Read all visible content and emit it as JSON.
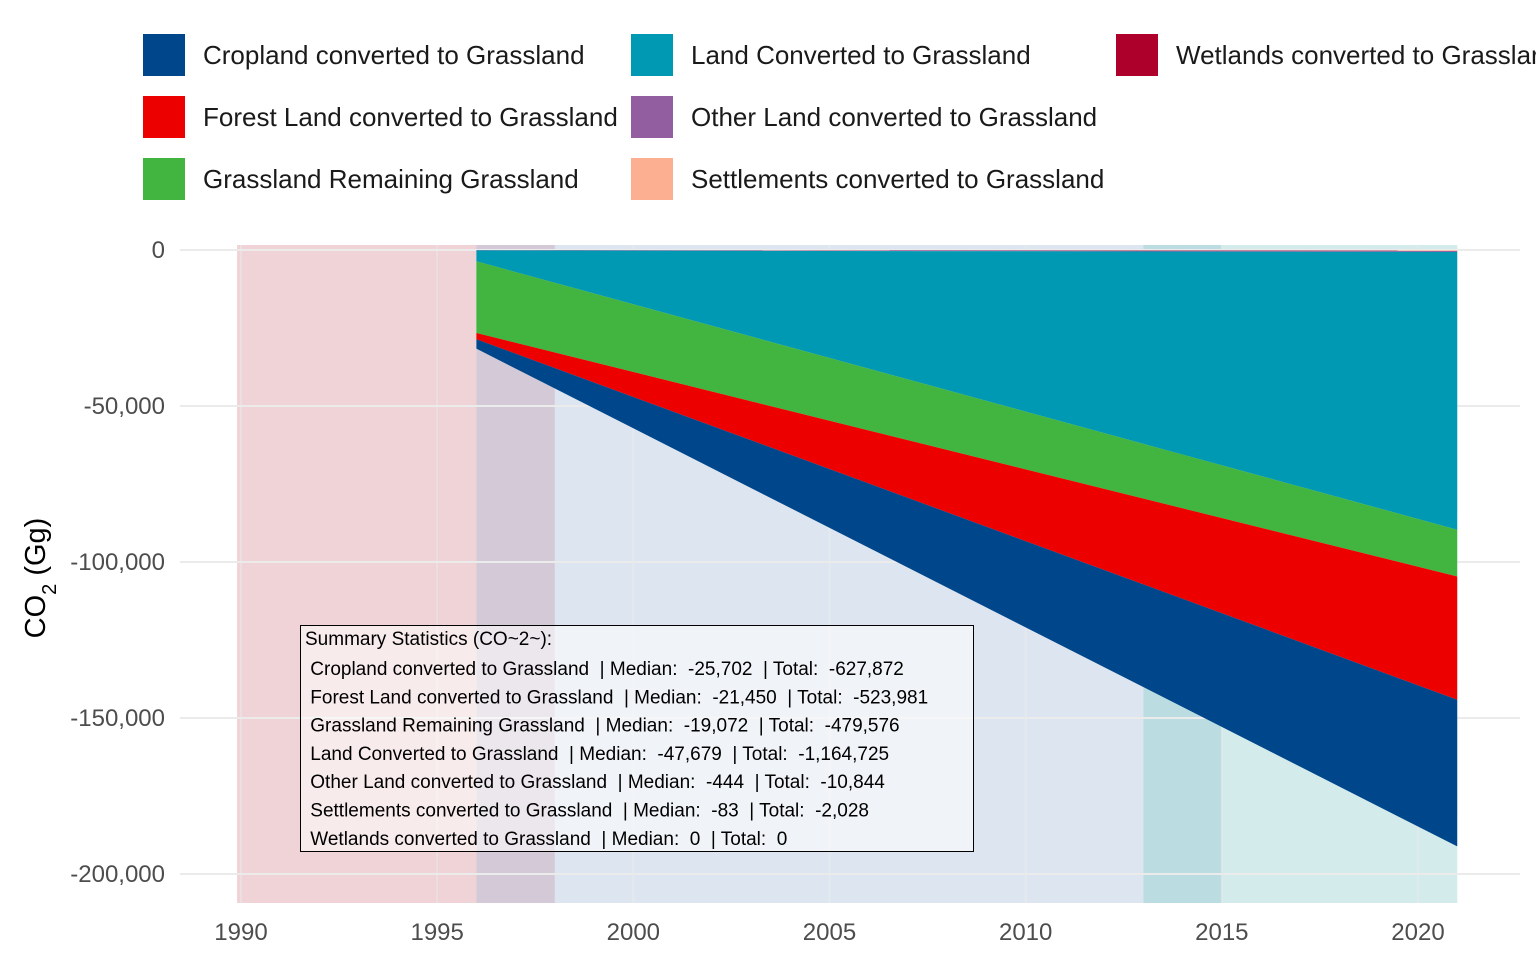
{
  "chart_data": {
    "type": "area",
    "ylabel": "CO2 (Gg)",
    "ylabel_main": "CO",
    "ylabel_sub": "2",
    "ylabel_unit": " (Gg)",
    "xlim": [
      1988.5,
      2022.5
    ],
    "ylim": [
      -210000,
      1000
    ],
    "x_ticks": [
      1990,
      1995,
      2000,
      2005,
      2010,
      2015,
      2020
    ],
    "x_tick_labels": [
      "1990",
      "1995",
      "2000",
      "2005",
      "2010",
      "2015",
      "2020"
    ],
    "y_ticks": [
      0,
      -50000,
      -100000,
      -150000,
      -200000
    ],
    "y_tick_labels": [
      "0",
      "-50,000",
      "-100,000",
      "-150,000",
      "-200,000"
    ],
    "grid": true,
    "legend_position": "top",
    "x": [
      1996,
      2021
    ],
    "series": [
      {
        "name": "Cropland converted to Grassland",
        "color": "#00468B",
        "values": [
          -3000,
          -47000
        ]
      },
      {
        "name": "Forest Land converted to Grassland",
        "color": "#ED0000",
        "values": [
          -2000,
          -39500
        ]
      },
      {
        "name": "Grassland Remaining Grassland",
        "color": "#42B540",
        "values": [
          -23000,
          -15000
        ]
      },
      {
        "name": "Land Converted to Grassland",
        "color": "#0099B4",
        "values": [
          -3500,
          -89000
        ]
      },
      {
        "name": "Other Land converted to Grassland",
        "color": "#925E9F",
        "values": [
          -100,
          -450
        ]
      },
      {
        "name": "Settlements converted to Grassland",
        "color": "#FDAF91",
        "values": [
          -20,
          -200
        ]
      },
      {
        "name": "Wetlands converted to Grassland",
        "color": "#AD002A",
        "values": [
          0,
          0
        ]
      }
    ],
    "legend": [
      {
        "label": "Cropland converted to Grassland",
        "color": "#00468B"
      },
      {
        "label": "Land Converted to Grassland",
        "color": "#0099B4"
      },
      {
        "label": "Wetlands converted to Grasslar",
        "color": "#AD002A"
      },
      {
        "label": "Forest Land converted to Grassland",
        "color": "#ED0000"
      },
      {
        "label": "Other Land converted to Grassland",
        "color": "#925E9F"
      },
      {
        "label": "Grassland Remaining Grassland",
        "color": "#42B540"
      },
      {
        "label": "Settlements converted to Grassland",
        "color": "#FDAF91"
      }
    ],
    "shaded_periods": [
      {
        "from": 1989.9,
        "to": 1996,
        "color": "#E5B6BA"
      },
      {
        "from": 1996,
        "to": 1998,
        "color": "#B8A6BD"
      },
      {
        "from": 1998,
        "to": 2013,
        "color": "#C7D6E6"
      },
      {
        "from": 2013,
        "to": 2015,
        "color": "#8EC6CF"
      },
      {
        "from": 2015,
        "to": 2021,
        "color": "#B6DDDD"
      }
    ],
    "summary": {
      "title": "Summary Statistics (CO~2~):",
      "lines": [
        " Cropland converted to Grassland  | Median:  -25,702  | Total:  -627,872",
        " Forest Land converted to Grassland  | Median:  -21,450  | Total:  -523,981",
        " Grassland Remaining Grassland  | Median:  -19,072  | Total:  -479,576",
        " Land Converted to Grassland  | Median:  -47,679  | Total:  -1,164,725",
        " Other Land converted to Grassland  | Median:  -444  | Total:  -10,844",
        " Settlements converted to Grassland  | Median:  -83  | Total:  -2,028",
        " Wetlands converted to Grassland  | Median:  0  | Total:  0"
      ]
    }
  }
}
